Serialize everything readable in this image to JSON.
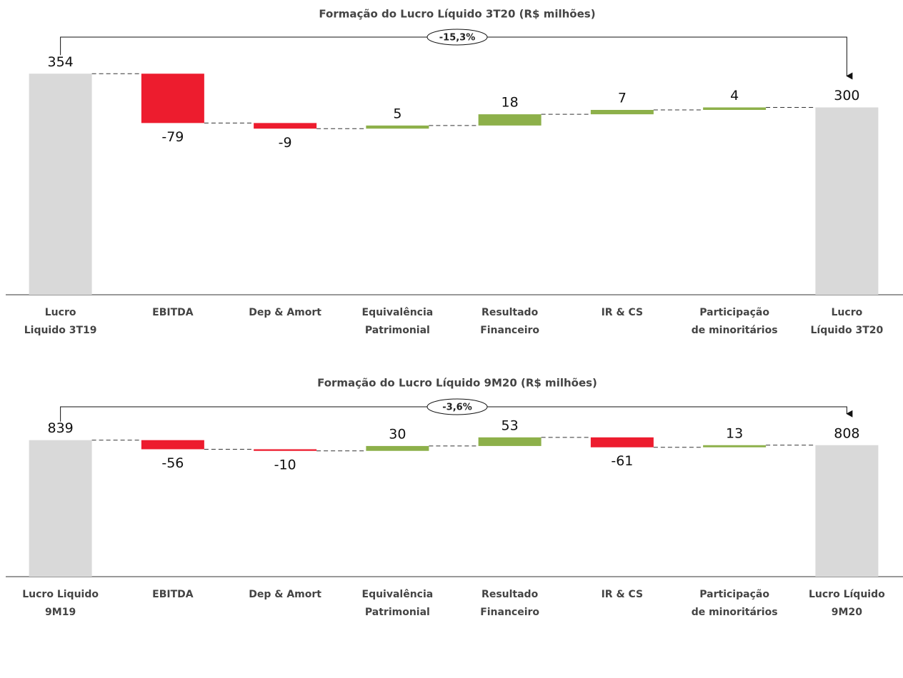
{
  "chart_data": [
    {
      "type": "waterfall",
      "title": "Formação do Lucro Líquido 3T20 (R$ milhões)",
      "annotation": "-15,3%",
      "categories": [
        "Lucro\nLiquido 3T19",
        "EBITDA",
        "Dep & Amort",
        "Equivalência\nPatrimonial",
        "Resultado\nFinanceiro",
        "IR & CS",
        "Participação\nde minoritários",
        "Lucro\nLíquido 3T20"
      ],
      "values": [
        354,
        -79,
        -9,
        5,
        18,
        7,
        4,
        300
      ],
      "colors": {
        "total": "#d9d9d9",
        "negative": "#ed1c2e",
        "positive": "#8db04a"
      },
      "ylim": [
        0,
        400
      ]
    },
    {
      "type": "waterfall",
      "title": "Formação do Lucro Líquido 9M20 (R$ milhões)",
      "annotation": "-3,6%",
      "categories": [
        "Lucro Liquido\n9M19",
        "EBITDA",
        "Dep & Amort",
        "Equivalência\nPatrimonial",
        "Resultado\nFinanceiro",
        "IR & CS",
        "Participação\nde minoritários",
        "Lucro Líquido\n9M20"
      ],
      "values": [
        839,
        -56,
        -10,
        30,
        53,
        -61,
        13,
        808
      ],
      "colors": {
        "total": "#d9d9d9",
        "negative": "#ed1c2e",
        "positive": "#8db04a"
      },
      "ylim": [
        0,
        1000
      ]
    }
  ]
}
